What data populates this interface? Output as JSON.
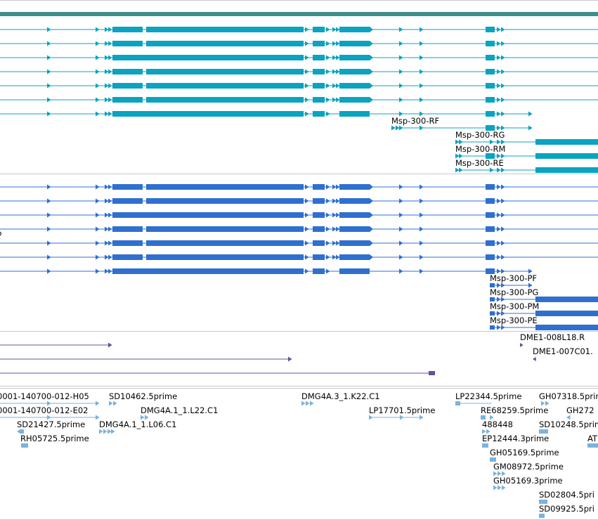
{
  "colors": {
    "header_bar": "#3f8f8a",
    "transcript_r": "#0aa3c0",
    "transcript_p": "#2f6fd0",
    "alignment": "#6a4fa0",
    "est": "#7ab3de",
    "separator": "#c8c8c8"
  },
  "tracks": {
    "transcripts_r": {
      "labels": [
        "Msp-300-RF",
        "Msp-300-RG",
        "Msp-300-RM",
        "Msp-300-RE"
      ]
    },
    "transcripts_p": {
      "labels": [
        "Msp-300-PF",
        "Msp-300-PG",
        "Msp-300-PM",
        "Msp-300-PE"
      ]
    },
    "alignments": {
      "labels": [
        "DME1-008L18.R",
        "DME1-007C01."
      ]
    },
    "ests": {
      "labels": [
        "0001-140700-012-H05",
        "0001-140700-012-E02",
        "SD21427.5prime",
        "RH05725.5prime",
        "SD10462.5prime",
        "DMG4A.1_1.L22.C1",
        "DMG4A.1_1.L06.C1",
        "DMG4A.3_1.K22.C1",
        "LP17701.5prime",
        "LP22344.5prime",
        "RE68259.5prime",
        "488448",
        "EP12444.3prime",
        "GH05169.5prime",
        "GM08972.5prime",
        "GH05169.3prime",
        "GH07318.5prime",
        "GH272",
        "SD10248.5prime",
        "AT",
        "SD02804.5pri",
        "SD09925.5pri"
      ]
    }
  }
}
